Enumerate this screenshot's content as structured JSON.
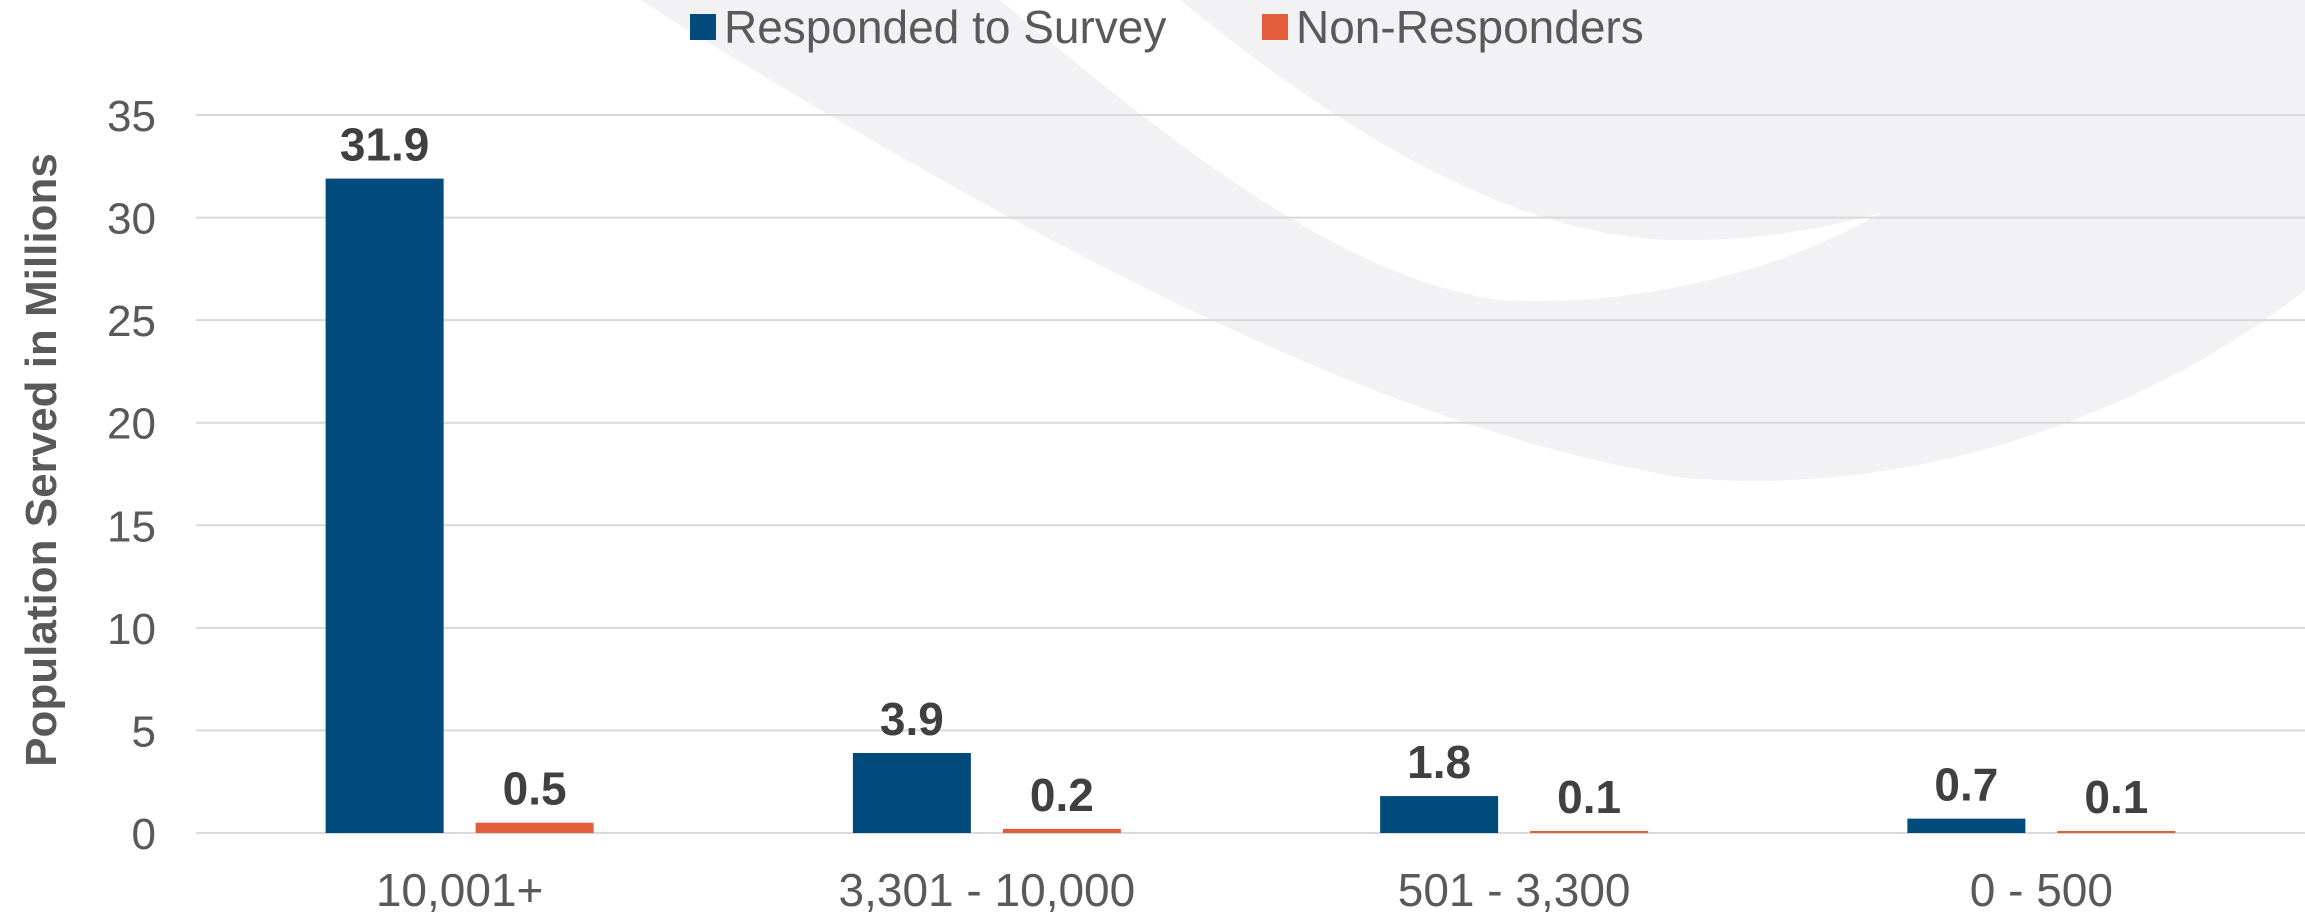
{
  "chart_data": {
    "type": "bar",
    "categories": [
      "10,001+",
      "3,301 - 10,000",
      "501 - 3,300",
      "0 - 500"
    ],
    "series": [
      {
        "name": "Responded to Survey",
        "values": [
          31.9,
          3.9,
          1.8,
          0.7
        ],
        "labels": [
          "31.9",
          "3.9",
          "1.8",
          "0.7"
        ],
        "color": "#004b7c"
      },
      {
        "name": "Non-Responders",
        "values": [
          0.5,
          0.2,
          0.1,
          0.1
        ],
        "labels": [
          "0.5",
          "0.2",
          "0.1",
          "0.1"
        ],
        "color": "#e35d3b"
      }
    ],
    "title": "",
    "xlabel": "",
    "ylabel": "Population Served in Millions",
    "ylim": [
      0,
      35
    ],
    "yticks": [
      0,
      5,
      10,
      15,
      20,
      25,
      30,
      35
    ],
    "grid": true,
    "legend_position": "top"
  },
  "colors": {
    "gridline": "#d9d9d9",
    "axis_text": "#595959",
    "label_text": "#404040",
    "watermark": "#f2f2f4"
  }
}
